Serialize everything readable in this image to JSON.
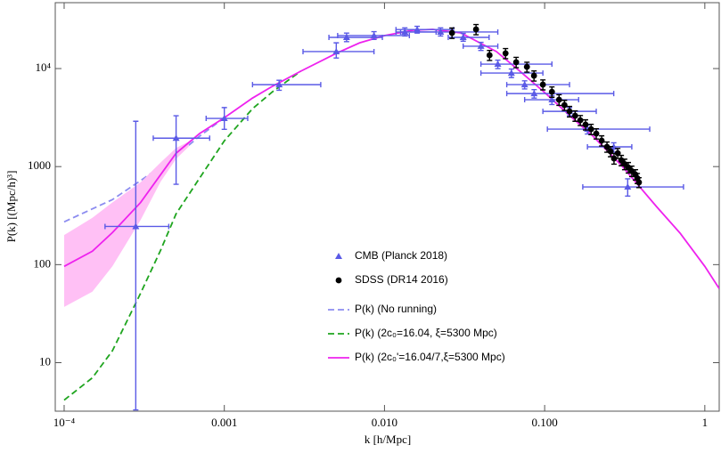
{
  "chart_data": {
    "type": "line",
    "x_label": "k [h/Mpc]",
    "y_label": "P(k) [(Mpc/h)³]",
    "x_scale": "log",
    "y_scale": "log",
    "xlim": [
      8.8e-05,
      1.23
    ],
    "ylim": [
      3.2,
      47000
    ],
    "xticks": [
      {
        "value": 0.0001,
        "label": "10⁻⁴"
      },
      0.001,
      {
        "value": 0.01,
        "label": "0.010"
      },
      {
        "value": 0.1,
        "label": "0.100"
      },
      1
    ],
    "yticks": [
      10,
      100,
      1000,
      {
        "value": 10000,
        "label": "10⁴"
      }
    ],
    "grid": false,
    "legend": "lower center",
    "series": [
      {
        "name": "CMB (Planck 2018)",
        "type": "errorbar",
        "marker": "triangle",
        "color": "#5a5ae6",
        "x": [
          0.00028,
          0.0005,
          0.001,
          0.0022,
          0.005,
          0.0058,
          0.0086,
          0.0134,
          0.016,
          0.0224,
          0.031,
          0.04,
          0.051,
          0.062,
          0.075,
          0.086,
          0.111,
          0.143,
          0.185,
          0.27,
          0.33
        ],
        "values": [
          245,
          1950,
          3100,
          6850,
          14900,
          20800,
          21700,
          23600,
          25000,
          23600,
          20800,
          16900,
          11100,
          9000,
          6860,
          5560,
          4810,
          3660,
          2410,
          1590,
          620
        ],
        "x_low": [
          0.00018,
          0.00036,
          0.00077,
          0.0015,
          0.0031,
          0.0045,
          0.0051,
          0.0118,
          0.0118,
          0.0126,
          0.025,
          0.031,
          0.04,
          0.04,
          0.058,
          0.058,
          0.075,
          0.0975,
          0.104,
          0.185,
          0.173
        ],
        "x_high": [
          0.00045,
          0.00081,
          0.0014,
          0.004,
          0.0086,
          0.0097,
          0.0143,
          0.021,
          0.027,
          0.051,
          0.045,
          0.051,
          0.111,
          0.0975,
          0.143,
          0.27,
          0.163,
          0.21,
          0.453,
          0.35,
          0.736
        ],
        "y_low": [
          3.3,
          660,
          2400,
          6000,
          12800,
          18800,
          19800,
          21500,
          23000,
          21500,
          19000,
          15300,
          10000,
          8100,
          6200,
          5000,
          4300,
          3300,
          2150,
          1400,
          500
        ],
        "y_high": [
          2900,
          3300,
          4000,
          7600,
          18300,
          23000,
          23800,
          26000,
          27000,
          26000,
          22800,
          18500,
          12200,
          9900,
          7500,
          6100,
          5300,
          4000,
          2650,
          1750,
          750
        ]
      },
      {
        "name": "SDSS (DR14 2016)",
        "type": "errorbar",
        "marker": "circle",
        "color": "#000000",
        "x": [
          0.0264,
          0.0373,
          0.0453,
          0.057,
          0.0664,
          0.0775,
          0.0858,
          0.0975,
          0.111,
          0.123,
          0.133,
          0.143,
          0.155,
          0.167,
          0.18,
          0.195,
          0.21,
          0.227,
          0.245,
          0.258,
          0.271,
          0.286,
          0.301,
          0.316,
          0.333,
          0.35,
          0.369,
          0.379,
          0.388
        ],
        "values": [
          23100,
          25100,
          13700,
          14300,
          11600,
          10400,
          8460,
          6860,
          5800,
          4810,
          4240,
          3660,
          3300,
          2970,
          2680,
          2410,
          2170,
          1840,
          1590,
          1430,
          1210,
          1370,
          1160,
          1060,
          980,
          900,
          830,
          760,
          690
        ],
        "y_err": [
          2800,
          3000,
          1600,
          1700,
          1400,
          1200,
          1000,
          800,
          700,
          600,
          500,
          450,
          400,
          350,
          320,
          290,
          260,
          220,
          190,
          170,
          150,
          160,
          140,
          130,
          120,
          110,
          100,
          90,
          80
        ]
      },
      {
        "name": "P(k) (No running)",
        "type": "line",
        "dash": true,
        "color": "#8c8cf0",
        "x": [
          0.0001,
          0.0002,
          0.0003,
          0.0005,
          0.0007,
          0.001
        ],
        "values": [
          273,
          460,
          720,
          1290,
          2040,
          3150
        ]
      },
      {
        "name": "P(k) (2c₀=16.04,  ξ=5300 Mpc)",
        "type": "line",
        "dash": true,
        "color": "#1fa51f",
        "x": [
          0.0001,
          0.00015,
          0.0002,
          0.0003,
          0.0004,
          0.0005,
          0.0007,
          0.001,
          0.0015,
          0.002,
          0.003
        ],
        "values": [
          4.15,
          7,
          13.2,
          51,
          140,
          330,
          760,
          1830,
          3900,
          5800,
          9400
        ]
      },
      {
        "name": "P(k) (2c₀'=16.04/7,ξ=5300 Mpc)",
        "type": "line",
        "dash": false,
        "color": "#ee22ee",
        "band": {
          "color": "#ffc0f5",
          "x": [
            0.0001,
            0.00015,
            0.0002,
            0.0003,
            0.0004,
            0.0005,
            0.0006
          ],
          "lower": [
            37,
            53,
            96,
            285,
            700,
            1200,
            1600
          ],
          "upper": [
            200,
            300,
            430,
            690,
            1100,
            1550,
            1800
          ]
        },
        "x": [
          0.0001,
          0.00015,
          0.0002,
          0.0003,
          0.0005,
          0.0007,
          0.001,
          0.0015,
          0.002,
          0.003,
          0.005,
          0.007,
          0.01,
          0.015,
          0.02,
          0.03,
          0.05,
          0.07,
          0.1,
          0.15,
          0.2,
          0.3,
          0.5,
          0.7,
          1,
          1.23
        ],
        "values": [
          96,
          137,
          212,
          430,
          1370,
          2170,
          3150,
          5000,
          6600,
          9400,
          14300,
          18300,
          21700,
          24600,
          25100,
          23100,
          14900,
          9400,
          5700,
          3100,
          2050,
          1040,
          390,
          210,
          96,
          57
        ]
      }
    ]
  }
}
